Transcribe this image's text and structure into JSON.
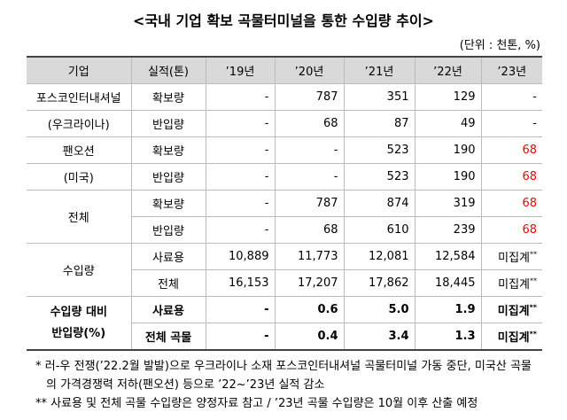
{
  "title": "<국내 기업 확보 곡물터미널을 통한 수입량 추이>",
  "unit": "(단위 : 천톤, %)",
  "table": {
    "header": [
      "기업",
      "실적(톤)",
      "’19년",
      "’20년",
      "’21년",
      "’22년",
      "’23년"
    ],
    "rows": [
      [
        "포스코인터내셔널",
        "확보량",
        "-",
        "787",
        "351",
        "129",
        "-"
      ],
      [
        "(우크라이나)",
        "반입량",
        "-",
        "68",
        "87",
        "49",
        "-"
      ],
      [
        "팬오션",
        "확보량",
        "-",
        "-",
        "523",
        "190",
        "68"
      ],
      [
        "(미국)",
        "반입량",
        "-",
        "-",
        "523",
        "190",
        "68"
      ],
      [
        "전체",
        "확보량",
        "-",
        "787",
        "874",
        "319",
        "68"
      ],
      [
        "반입량",
        "-",
        "68",
        "610",
        "239",
        "68"
      ],
      [
        "수입량",
        "사료용",
        "10,889",
        "11,773",
        "12,081",
        "12,584",
        {
          "text": "미집계",
          "mark": "**"
        }
      ],
      [
        "전체",
        "16,153",
        "17,207",
        "17,862",
        "18,445",
        {
          "text": "미집계",
          "mark": "**"
        }
      ],
      [
        "수입량 대비\n반입량(%)",
        "사료용",
        "-",
        "0.6",
        "5.0",
        "1.9",
        {
          "text": "미집계",
          "mark": "**"
        }
      ],
      [
        "전체 곡물",
        "-",
        "0.4",
        "3.4",
        "1.3",
        {
          "text": "미집계",
          "mark": "**"
        }
      ]
    ]
  },
  "footnotes": [
    "* 러-우 전쟁(’22.2월 발발)으로 우크라이나 소재 포스코인터내셔널 곡물터미널 가동 중단, 미국산 곡물의 가격경쟁력 저하(팬오션) 등으로 ’22~’23년 실적 감소",
    "** 사료용 및 전체 곡물 수입량은 양정자료 참고 / ’23년 곡물 수입량은 10월 이후 산출 예정"
  ]
}
